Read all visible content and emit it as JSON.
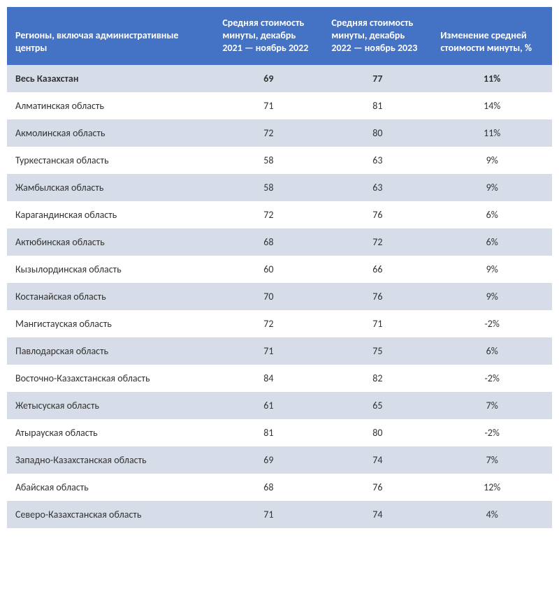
{
  "table": {
    "type": "table",
    "header_bg": "#4472c4",
    "header_color": "#ffffff",
    "row_alt_bg": "#d6dce8",
    "row_plain_bg": "#ffffff",
    "text_color": "#333333",
    "font_size": 14,
    "columns": [
      {
        "label": "Регионы, включая административные центры",
        "align": "left"
      },
      {
        "label": " Средняя стоимость минуты,\nдекабрь 2021 — ноябрь 2022",
        "align": "center"
      },
      {
        "label": " Средняя стоимость минуты,\nдекабрь 2022 — ноябрь 2023",
        "align": "center"
      },
      {
        "label": "Изменение средней стоимости минуты, %",
        "align": "center"
      }
    ],
    "rows": [
      {
        "region": "Весь Казахстан",
        "v1": "69",
        "v2": "77",
        "change": "11%",
        "bold": true
      },
      {
        "region": "Алматинская область",
        "v1": "71",
        "v2": "81",
        "change": "14%",
        "bold": false
      },
      {
        "region": "Акмолинская область",
        "v1": "72",
        "v2": "80",
        "change": "11%",
        "bold": false
      },
      {
        "region": "Туркестанская область",
        "v1": "58",
        "v2": "63",
        "change": "9%",
        "bold": false
      },
      {
        "region": "Жамбылская область",
        "v1": "58",
        "v2": "63",
        "change": "9%",
        "bold": false
      },
      {
        "region": "Карагандинская область",
        "v1": "72",
        "v2": "76",
        "change": "6%",
        "bold": false
      },
      {
        "region": "Актюбинская область",
        "v1": "68",
        "v2": "72",
        "change": "6%",
        "bold": false
      },
      {
        "region": "Кызылординская область",
        "v1": "60",
        "v2": "66",
        "change": "9%",
        "bold": false
      },
      {
        "region": "Костанайская область",
        "v1": "70",
        "v2": "76",
        "change": "9%",
        "bold": false
      },
      {
        "region": "Мангистауская область",
        "v1": "72",
        "v2": "71",
        "change": "-2%",
        "bold": false
      },
      {
        "region": "Павлодарская область",
        "v1": "71",
        "v2": "75",
        "change": "6%",
        "bold": false
      },
      {
        "region": "Восточно-Казахстанская область",
        "v1": "84",
        "v2": "82",
        "change": "-2%",
        "bold": false
      },
      {
        "region": "Жетысуская область",
        "v1": "61",
        "v2": "65",
        "change": "7%",
        "bold": false
      },
      {
        "region": "Атырауская область",
        "v1": "81",
        "v2": "80",
        "change": "-2%",
        "bold": false
      },
      {
        "region": "Западно-Казахстанская область",
        "v1": "69",
        "v2": "74",
        "change": "7%",
        "bold": false
      },
      {
        "region": "Абайская область",
        "v1": "68",
        "v2": "76",
        "change": "12%",
        "bold": false
      },
      {
        "region": "Северо-Казахстанская область",
        "v1": "71",
        "v2": "74",
        "change": "4%",
        "bold": false
      }
    ]
  }
}
